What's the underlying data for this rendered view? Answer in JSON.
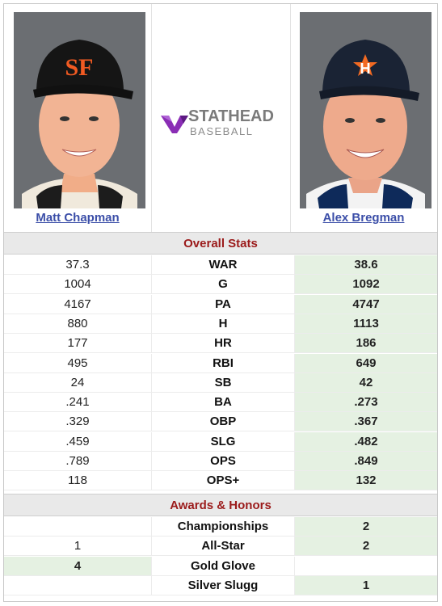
{
  "left_player": {
    "name": "Matt Chapman"
  },
  "right_player": {
    "name": "Alex Bregman"
  },
  "logo": {
    "line1": "STATHEAD",
    "line2": "BASEBALL",
    "accent": "#8a2db5"
  },
  "sections": {
    "overall": "Overall Stats",
    "awards": "Awards & Honors"
  },
  "overall_stats": [
    {
      "label": "WAR",
      "left": "37.3",
      "right": "38.6",
      "winner": "right"
    },
    {
      "label": "G",
      "left": "1004",
      "right": "1092",
      "winner": "right"
    },
    {
      "label": "PA",
      "left": "4167",
      "right": "4747",
      "winner": "right"
    },
    {
      "label": "H",
      "left": "880",
      "right": "1113",
      "winner": "right"
    },
    {
      "label": "HR",
      "left": "177",
      "right": "186",
      "winner": "right"
    },
    {
      "label": "RBI",
      "left": "495",
      "right": "649",
      "winner": "right"
    },
    {
      "label": "SB",
      "left": "24",
      "right": "42",
      "winner": "right"
    },
    {
      "label": "BA",
      "left": ".241",
      "right": ".273",
      "winner": "right"
    },
    {
      "label": "OBP",
      "left": ".329",
      "right": ".367",
      "winner": "right"
    },
    {
      "label": "SLG",
      "left": ".459",
      "right": ".482",
      "winner": "right"
    },
    {
      "label": "OPS",
      "left": ".789",
      "right": ".849",
      "winner": "right"
    },
    {
      "label": "OPS+",
      "left": "118",
      "right": "132",
      "winner": "right"
    }
  ],
  "awards": [
    {
      "label": "Championships",
      "left": "",
      "right": "2",
      "winner": "right"
    },
    {
      "label": "All-Star",
      "left": "1",
      "right": "2",
      "winner": "right"
    },
    {
      "label": "Gold Glove",
      "left": "4",
      "right": "",
      "winner": "left"
    },
    {
      "label": "Silver Slugg",
      "left": "",
      "right": "1",
      "winner": "right"
    }
  ],
  "colors": {
    "win_bg": "#e5f1e2",
    "section_text": "#9b1a1a",
    "link": "#3b4ea8"
  }
}
